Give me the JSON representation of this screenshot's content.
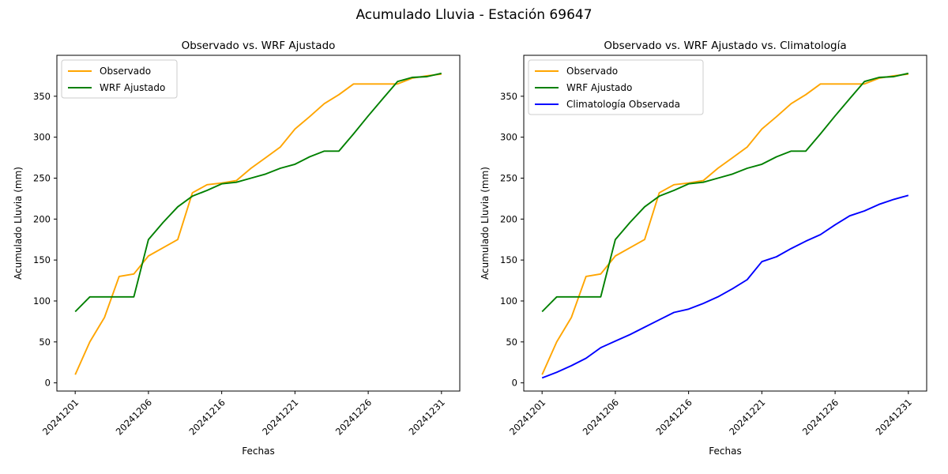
{
  "suptitle": "Acumulado Lluvia - Estación 69647",
  "chart_data": [
    {
      "type": "line",
      "title": "Observado vs. WRF Ajustado",
      "xlabel": "Fechas",
      "ylabel": "Acumulado Lluvia (mm)",
      "x_tick_positions": [
        0,
        5,
        10,
        15,
        20,
        25
      ],
      "x_tick_labels": [
        "20241201",
        "20241206",
        "20241216",
        "20241221",
        "20241226",
        "20241231"
      ],
      "y_ticks": [
        0,
        50,
        100,
        150,
        200,
        250,
        300,
        350
      ],
      "xlim": [
        -1.25,
        26.25
      ],
      "ylim": [
        -10,
        400
      ],
      "n_points": 26,
      "grid": false,
      "legend_position": "upper-left",
      "series": [
        {
          "name": "Observado",
          "color": "#FFA500",
          "values": [
            10,
            50,
            80,
            130,
            133,
            155,
            165,
            175,
            232,
            242,
            244,
            247,
            262,
            275,
            288,
            310,
            325,
            341,
            352,
            365,
            365,
            365,
            365,
            372,
            375,
            377
          ]
        },
        {
          "name": "WRF Ajustado",
          "color": "#008000",
          "values": [
            87,
            105,
            105,
            105,
            105,
            175,
            196,
            215,
            228,
            235,
            243,
            245,
            250,
            255,
            262,
            267,
            276,
            283,
            283,
            304,
            326,
            347,
            368,
            373,
            374,
            378
          ]
        }
      ]
    },
    {
      "type": "line",
      "title": "Observado vs. WRF Ajustado vs. Climatología",
      "xlabel": "Fechas",
      "ylabel": "Acumulado Lluvia (mm)",
      "x_tick_positions": [
        0,
        5,
        10,
        15,
        20,
        25
      ],
      "x_tick_labels": [
        "20241201",
        "20241206",
        "20241216",
        "20241221",
        "20241226",
        "20241231"
      ],
      "y_ticks": [
        0,
        50,
        100,
        150,
        200,
        250,
        300,
        350
      ],
      "xlim": [
        -1.25,
        26.25
      ],
      "ylim": [
        -10,
        400
      ],
      "n_points": 26,
      "grid": false,
      "legend_position": "upper-left",
      "series": [
        {
          "name": "Observado",
          "color": "#FFA500",
          "values": [
            10,
            50,
            80,
            130,
            133,
            155,
            165,
            175,
            232,
            242,
            244,
            247,
            262,
            275,
            288,
            310,
            325,
            341,
            352,
            365,
            365,
            365,
            365,
            372,
            375,
            377
          ]
        },
        {
          "name": "WRF Ajustado",
          "color": "#008000",
          "values": [
            87,
            105,
            105,
            105,
            105,
            175,
            196,
            215,
            228,
            235,
            243,
            245,
            250,
            255,
            262,
            267,
            276,
            283,
            283,
            304,
            326,
            347,
            368,
            373,
            374,
            378
          ]
        },
        {
          "name": "Climatología Observada",
          "color": "#0000FF",
          "values": [
            6,
            13,
            21,
            30,
            43,
            51,
            59,
            68,
            77,
            86,
            90,
            97,
            105,
            115,
            126,
            148,
            154,
            164,
            173,
            181,
            193,
            204,
            210,
            218,
            224,
            229
          ]
        }
      ]
    }
  ]
}
